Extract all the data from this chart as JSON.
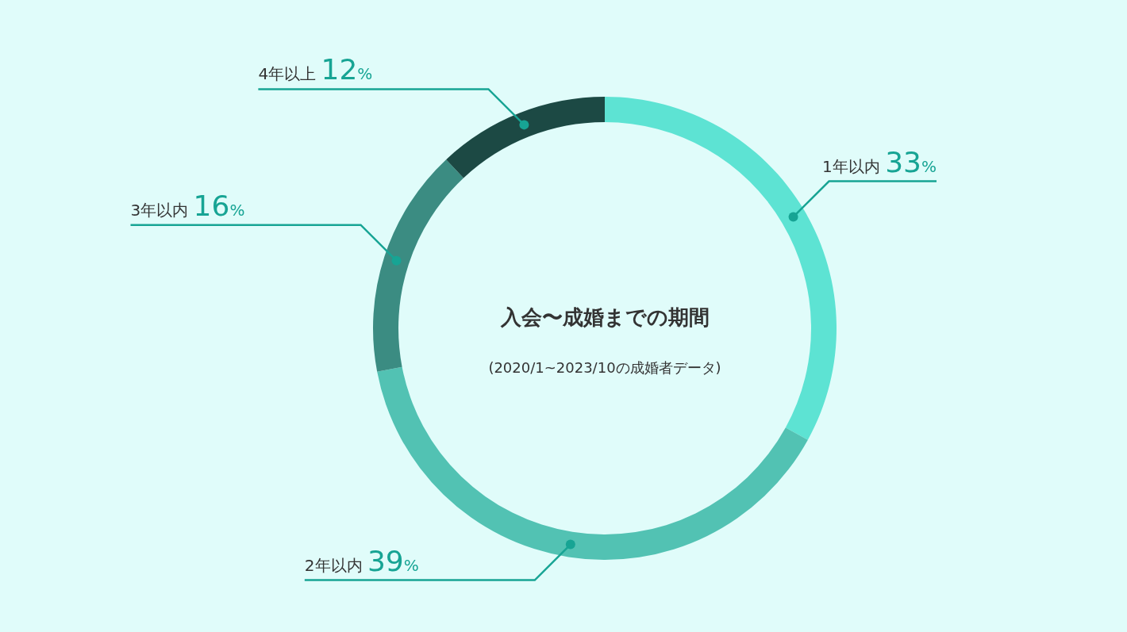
{
  "chart_data": {
    "type": "donut",
    "title": "入会〜成婚までの期間",
    "subtitle": "(2020/1~2023/10の成婚者データ)",
    "categories": [
      "1年以内",
      "2年以内",
      "3年以内",
      "4年以上"
    ],
    "values": [
      33,
      39,
      16,
      12
    ],
    "value_labels": [
      "33%",
      "39%",
      "16%",
      "12%"
    ],
    "colors": [
      "#5de3d3",
      "#52c2b3",
      "#3b8c82",
      "#1c4944"
    ]
  }
}
